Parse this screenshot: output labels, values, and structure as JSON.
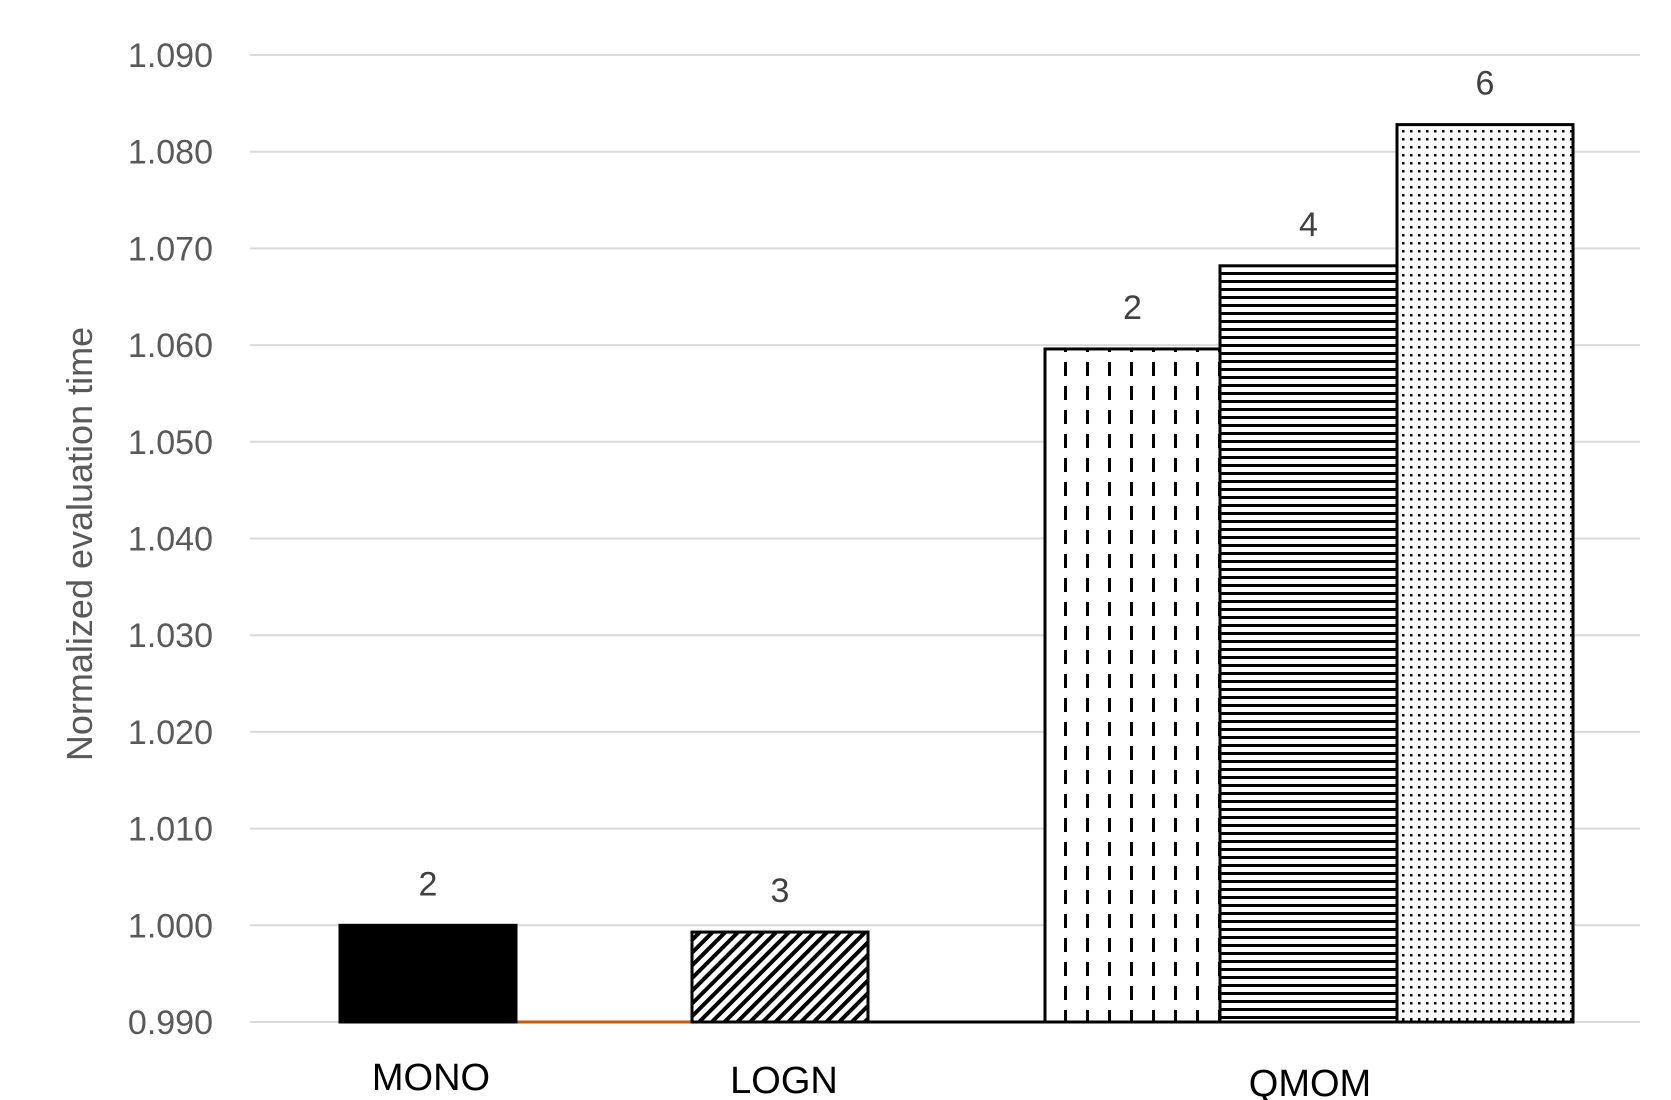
{
  "chart_data": {
    "type": "bar",
    "title": "",
    "xlabel": "",
    "ylabel": "Normalized evaluation time",
    "ylim": [
      0.99,
      1.09
    ],
    "yticks": [
      "0.990",
      "1.000",
      "1.010",
      "1.020",
      "1.030",
      "1.040",
      "1.050",
      "1.060",
      "1.070",
      "1.080",
      "1.090"
    ],
    "grid": true,
    "legend": "none",
    "categories": [
      "MONO",
      "LOGN",
      "QMOM"
    ],
    "bars": [
      {
        "category": "MONO",
        "label": "2",
        "value": 1.0,
        "pattern": "solid"
      },
      {
        "category": "LOGN",
        "label": "3",
        "value": 0.9993,
        "pattern": "diagonal"
      },
      {
        "category": "QMOM",
        "label": "2",
        "value": 1.0596,
        "pattern": "vertical-dash"
      },
      {
        "category": "QMOM",
        "label": "4",
        "value": 1.0682,
        "pattern": "horizontal"
      },
      {
        "category": "QMOM",
        "label": "6",
        "value": 1.0828,
        "pattern": "dots"
      }
    ],
    "colors": {
      "bar_stroke": "#000000",
      "baseline_accent": "#c55a11",
      "grid": "#d9d9d9"
    }
  }
}
